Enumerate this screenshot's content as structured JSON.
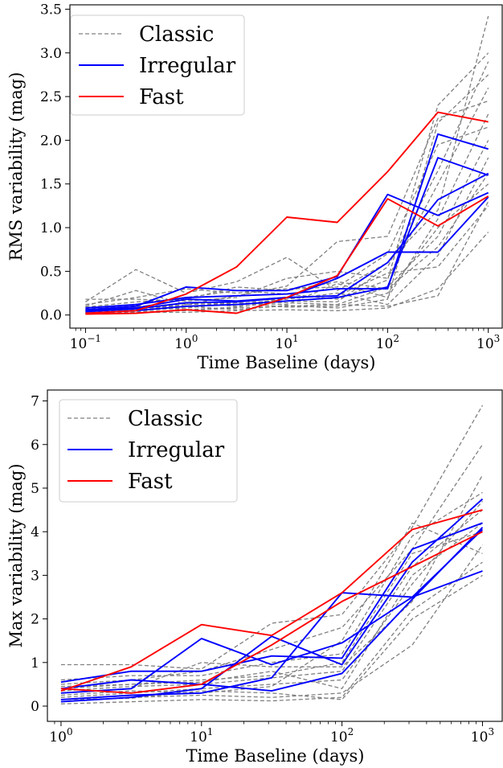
{
  "chart_data": [
    {
      "type": "line",
      "xscale": "log",
      "xlim": [
        0.07,
        1400
      ],
      "ylim": [
        -0.15,
        3.55
      ],
      "xlabel": "Time Baseline (days)",
      "ylabel": "RMS variability (mag)",
      "x_ticks": [
        {
          "value": 0.1,
          "base": "10",
          "exp": "−1"
        },
        {
          "value": 1,
          "base": "10",
          "exp": "0"
        },
        {
          "value": 10,
          "base": "10",
          "exp": "1"
        },
        {
          "value": 100,
          "base": "10",
          "exp": "2"
        },
        {
          "value": 1000,
          "base": "10",
          "exp": "3"
        }
      ],
      "y_ticks": [
        {
          "value": 0,
          "label": "0.0"
        },
        {
          "value": 0.5,
          "label": "0.5"
        },
        {
          "value": 1,
          "label": "1.0"
        },
        {
          "value": 1.5,
          "label": "1.5"
        },
        {
          "value": 2,
          "label": "2.0"
        },
        {
          "value": 2.5,
          "label": "2.5"
        },
        {
          "value": 3,
          "label": "3.0"
        },
        {
          "value": 3.5,
          "label": "3.5"
        }
      ],
      "legend": {
        "position": "top-left",
        "entries": [
          {
            "label": "Classic",
            "color": "#808080",
            "style": "dashed"
          },
          {
            "label": "Irregular",
            "color": "#0000ff",
            "style": "solid"
          },
          {
            "label": "Fast",
            "color": "#ff0000",
            "style": "solid"
          }
        ]
      },
      "x": [
        0.1,
        0.316,
        1,
        3.16,
        10,
        31.6,
        100,
        316,
        1000
      ],
      "series": [
        {
          "group": "Classic",
          "values": [
            0.15,
            0.52,
            0.25,
            0.38,
            0.66,
            0.28,
            0.6,
            1.2,
            3.42
          ]
        },
        {
          "group": "Classic",
          "values": [
            0.1,
            0.28,
            0.12,
            0.22,
            0.33,
            0.84,
            0.9,
            2.25,
            2.45
          ]
        },
        {
          "group": "Classic",
          "values": [
            0.18,
            0.18,
            0.16,
            0.2,
            0.42,
            0.5,
            0.42,
            1.5,
            2.6
          ]
        },
        {
          "group": "Classic",
          "values": [
            0.05,
            0.1,
            0.08,
            0.14,
            0.12,
            0.36,
            0.2,
            1.1,
            2.3
          ]
        },
        {
          "group": "Classic",
          "values": [
            0.02,
            0.04,
            0.05,
            0.08,
            0.1,
            0.12,
            0.32,
            0.9,
            2.0
          ]
        },
        {
          "group": "Classic",
          "values": [
            0.08,
            0.12,
            0.2,
            0.28,
            0.24,
            0.18,
            0.4,
            2.4,
            3.0
          ]
        },
        {
          "group": "Classic",
          "values": [
            0.03,
            0.06,
            0.1,
            0.12,
            0.18,
            0.25,
            0.12,
            0.68,
            1.8
          ]
        },
        {
          "group": "Classic",
          "values": [
            0.06,
            0.08,
            0.14,
            0.1,
            0.2,
            0.22,
            0.48,
            0.55,
            1.25
          ]
        },
        {
          "group": "Classic",
          "values": [
            0.01,
            0.03,
            0.03,
            0.05,
            0.06,
            0.05,
            0.08,
            0.3,
            0.95
          ]
        },
        {
          "group": "Classic",
          "values": [
            0.04,
            0.05,
            0.08,
            0.16,
            0.14,
            0.12,
            0.1,
            0.22,
            1.3
          ]
        },
        {
          "group": "Classic",
          "values": [
            0.12,
            0.2,
            0.3,
            0.25,
            0.3,
            0.32,
            0.7,
            1.95,
            2.15
          ]
        },
        {
          "group": "Classic",
          "values": [
            0.07,
            0.11,
            0.06,
            0.09,
            0.16,
            0.15,
            0.55,
            1.65,
            2.9
          ]
        },
        {
          "group": "Classic",
          "values": [
            0.02,
            0.07,
            0.12,
            0.14,
            0.09,
            0.1,
            0.25,
            1.0,
            1.5
          ]
        },
        {
          "group": "Classic",
          "values": [
            0.09,
            0.15,
            0.18,
            0.32,
            0.28,
            0.38,
            0.3,
            0.78,
            1.62
          ]
        },
        {
          "group": "Classic",
          "values": [
            0.05,
            0.09,
            0.1,
            0.06,
            0.11,
            0.08,
            0.18,
            2.2,
            2.75
          ]
        },
        {
          "group": "Irregular",
          "values": [
            0.06,
            0.1,
            0.32,
            0.28,
            0.28,
            0.44,
            1.38,
            1.14,
            1.4
          ]
        },
        {
          "group": "Irregular",
          "values": [
            0.04,
            0.07,
            0.14,
            0.15,
            0.2,
            0.42,
            0.72,
            0.72,
            1.35
          ]
        },
        {
          "group": "Irregular",
          "values": [
            0.08,
            0.12,
            0.2,
            0.22,
            0.24,
            0.3,
            0.3,
            2.07,
            1.9
          ]
        },
        {
          "group": "Irregular",
          "values": [
            0.02,
            0.05,
            0.1,
            0.12,
            0.16,
            0.2,
            0.32,
            1.8,
            1.6
          ]
        },
        {
          "group": "Irregular",
          "values": [
            0.05,
            0.08,
            0.18,
            0.16,
            0.2,
            0.22,
            0.6,
            1.32,
            1.62
          ]
        },
        {
          "group": "Fast",
          "values": [
            0.02,
            0.05,
            0.24,
            0.55,
            1.12,
            1.06,
            1.64,
            2.32,
            2.21
          ]
        },
        {
          "group": "Fast",
          "values": [
            0.01,
            0.02,
            0.06,
            0.02,
            0.2,
            0.45,
            1.33,
            1.02,
            1.36
          ]
        }
      ]
    },
    {
      "type": "line",
      "xscale": "log",
      "xlim": [
        0.8,
        1400
      ],
      "ylim": [
        -0.35,
        7.25
      ],
      "xlabel": "Time Baseline (days)",
      "ylabel": "Max variability (mag)",
      "x_ticks": [
        {
          "value": 1,
          "base": "10",
          "exp": "0"
        },
        {
          "value": 10,
          "base": "10",
          "exp": "1"
        },
        {
          "value": 100,
          "base": "10",
          "exp": "2"
        },
        {
          "value": 1000,
          "base": "10",
          "exp": "3"
        }
      ],
      "y_ticks": [
        {
          "value": 0,
          "label": "0"
        },
        {
          "value": 1,
          "label": "1"
        },
        {
          "value": 2,
          "label": "2"
        },
        {
          "value": 3,
          "label": "3"
        },
        {
          "value": 4,
          "label": "4"
        },
        {
          "value": 5,
          "label": "5"
        },
        {
          "value": 6,
          "label": "6"
        },
        {
          "value": 7,
          "label": "7"
        }
      ],
      "legend": {
        "position": "top-left",
        "entries": [
          {
            "label": "Classic",
            "color": "#808080",
            "style": "dashed"
          },
          {
            "label": "Irregular",
            "color": "#0000ff",
            "style": "solid"
          },
          {
            "label": "Fast",
            "color": "#ff0000",
            "style": "solid"
          }
        ]
      },
      "x": [
        1,
        3.16,
        10,
        31.6,
        100,
        316,
        1000
      ],
      "series": [
        {
          "group": "Classic",
          "values": [
            0.95,
            0.95,
            0.85,
            1.9,
            2.1,
            4.1,
            6.9
          ]
        },
        {
          "group": "Classic",
          "values": [
            0.5,
            0.6,
            0.8,
            1.3,
            1.8,
            3.6,
            6.0
          ]
        },
        {
          "group": "Classic",
          "values": [
            0.3,
            0.4,
            1.0,
            0.9,
            0.9,
            2.4,
            5.3
          ]
        },
        {
          "group": "Classic",
          "values": [
            0.2,
            0.3,
            0.4,
            0.5,
            0.6,
            2.8,
            4.7
          ]
        },
        {
          "group": "Classic",
          "values": [
            0.1,
            0.2,
            0.25,
            0.2,
            0.3,
            1.4,
            3.7
          ]
        },
        {
          "group": "Classic",
          "values": [
            0.05,
            0.1,
            0.15,
            0.12,
            0.2,
            2.2,
            3.3
          ]
        },
        {
          "group": "Classic",
          "values": [
            0.6,
            0.7,
            0.7,
            1.0,
            1.2,
            3.9,
            4.9
          ]
        },
        {
          "group": "Classic",
          "values": [
            0.4,
            0.5,
            0.55,
            0.8,
            0.4,
            3.0,
            4.2
          ]
        },
        {
          "group": "Classic",
          "values": [
            0.25,
            0.35,
            0.3,
            0.45,
            1.5,
            4.2,
            3.5
          ]
        },
        {
          "group": "Classic",
          "values": [
            0.15,
            0.18,
            0.35,
            0.3,
            0.15,
            2.0,
            3.0
          ]
        },
        {
          "group": "Classic",
          "values": [
            0.35,
            0.45,
            0.5,
            0.65,
            0.8,
            3.2,
            4.5
          ]
        },
        {
          "group": "Classic",
          "values": [
            0.45,
            0.5,
            0.6,
            0.7,
            1.0,
            3.5,
            4.0
          ]
        },
        {
          "group": "Irregular",
          "values": [
            0.55,
            0.8,
            0.8,
            1.15,
            1.1,
            3.6,
            4.2
          ]
        },
        {
          "group": "Irregular",
          "values": [
            0.3,
            0.4,
            1.55,
            0.95,
            1.45,
            2.5,
            3.1
          ]
        },
        {
          "group": "Irregular",
          "values": [
            0.15,
            0.25,
            0.3,
            0.65,
            2.6,
            2.5,
            4.05
          ]
        },
        {
          "group": "Irregular",
          "values": [
            0.1,
            0.2,
            0.4,
            1.6,
            0.95,
            3.3,
            4.75
          ]
        },
        {
          "group": "Irregular",
          "values": [
            0.4,
            0.6,
            0.5,
            0.35,
            0.75,
            2.45,
            4.1
          ]
        },
        {
          "group": "Fast",
          "values": [
            0.35,
            0.9,
            1.87,
            1.62,
            2.6,
            4.05,
            4.5
          ]
        },
        {
          "group": "Fast",
          "values": [
            0.4,
            0.3,
            0.5,
            1.4,
            2.4,
            3.2,
            4.0
          ]
        }
      ]
    }
  ]
}
